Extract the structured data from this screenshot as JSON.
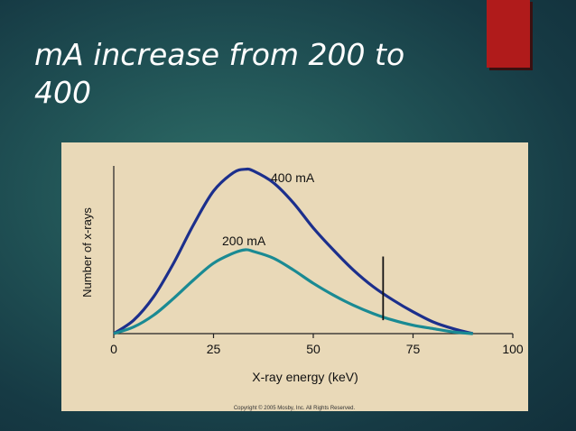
{
  "slide": {
    "title_line1": "mA increase from 200 to",
    "title_line2": "400"
  },
  "colors": {
    "accent": "#b01b1b",
    "panel": "#e9d9b8",
    "series_400": "#1c2f8c",
    "series_200": "#1a8a93"
  },
  "chart_data": {
    "type": "line",
    "xlabel": "X-ray energy (keV)",
    "ylabel": "Number of x-rays",
    "xlim": [
      0,
      100
    ],
    "ylim": [
      0,
      100
    ],
    "xticks": [
      "0",
      "25",
      "50",
      "75",
      "100"
    ],
    "xtick_values": [
      0,
      25,
      50,
      75,
      100
    ],
    "grid": false,
    "series": [
      {
        "name": "400 mA",
        "x": [
          0,
          5,
          10,
          15,
          20,
          25,
          30,
          33,
          35,
          40,
          45,
          50,
          55,
          60,
          65,
          70,
          75,
          80,
          85,
          90
        ],
        "y": [
          0,
          8,
          22,
          42,
          65,
          85,
          96,
          98,
          97,
          90,
          78,
          63,
          50,
          38,
          28,
          20,
          13,
          7,
          3,
          0
        ]
      },
      {
        "name": "200 mA",
        "x": [
          0,
          5,
          10,
          15,
          20,
          25,
          30,
          33,
          35,
          40,
          45,
          50,
          55,
          60,
          65,
          70,
          75,
          80,
          85,
          90
        ],
        "y": [
          0,
          4,
          11,
          21,
          32,
          42,
          48,
          50,
          49,
          45,
          38,
          30,
          23,
          17,
          12,
          8,
          5,
          3,
          1,
          0
        ]
      }
    ],
    "annotation_marker_x": 67.5,
    "footer": "Copyright © 2005 Mosby, Inc. All Rights Reserved."
  }
}
